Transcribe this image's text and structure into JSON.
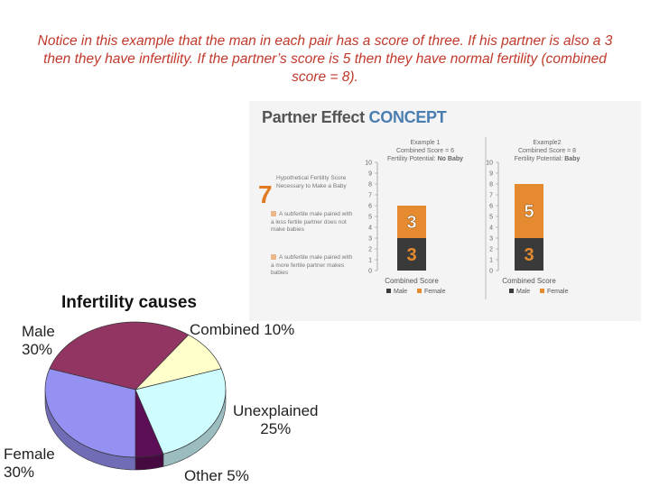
{
  "caption": "Notice in this example that the man in each pair has a score of three. If his partner is also a 3 then they have infertility. If the partner’s score is 5 then they have normal fertility (combined score = 8).",
  "slide": {
    "title_part1": "Partner Effect ",
    "title_part2": "CONCEPT",
    "big_number": "7",
    "hyp_score_label": "Hypothetical Fertility Score",
    "hyp_score_sub": "Necessary to Make a Baby",
    "bullet1": "A subfertile male paired with a less fertile partner does not make babies",
    "bullet2": "A subfertile male paired with a more fertile partner makes babies",
    "colors": {
      "male": "#3a3a3a",
      "female": "#e58a2e"
    }
  },
  "chart_data": [
    {
      "type": "bar",
      "stacked": true,
      "title": "Example 1",
      "subtitle_line1": "Combined Score = 6",
      "subtitle_line2_prefix": "Fertility Potential: ",
      "subtitle_line2_value": "No Baby",
      "xlabel": "Combined Score",
      "ylim": [
        0,
        10
      ],
      "ticks": [
        "0",
        "1",
        "2",
        "3",
        "4",
        "5",
        "6",
        "7",
        "8",
        "9",
        "10"
      ],
      "series": [
        {
          "name": "Male",
          "values": [
            3
          ],
          "label": "3"
        },
        {
          "name": "Female",
          "values": [
            3
          ],
          "label": "3"
        }
      ]
    },
    {
      "type": "bar",
      "stacked": true,
      "title": "Example2",
      "subtitle_line1": "Combined Score = 8",
      "subtitle_line2_prefix": "Fertility Potential: ",
      "subtitle_line2_value": "Baby",
      "xlabel": "Combined Score",
      "ylim": [
        0,
        10
      ],
      "ticks": [
        "0",
        "1",
        "2",
        "3",
        "4",
        "5",
        "6",
        "7",
        "8",
        "9",
        "10"
      ],
      "series": [
        {
          "name": "Male",
          "values": [
            3
          ],
          "label": "3"
        },
        {
          "name": "Female",
          "values": [
            5
          ],
          "label": "5"
        }
      ]
    },
    {
      "type": "pie",
      "title": "Infertility causes",
      "slices": [
        {
          "name": "Male",
          "value": 30,
          "label": "30%",
          "color": "#923562"
        },
        {
          "name": "Combined",
          "value": 10,
          "label": "10%",
          "color": "#ffffcc"
        },
        {
          "name": "Unexplained",
          "value": 25,
          "label": "25%",
          "color": "#cffcff"
        },
        {
          "name": "Other",
          "value": 5,
          "label": "5%",
          "color": "#5c0e57"
        },
        {
          "name": "Female",
          "value": 30,
          "label": "30%",
          "color": "#9591f2"
        }
      ]
    }
  ]
}
